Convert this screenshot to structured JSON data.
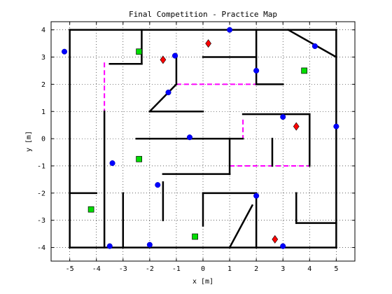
{
  "chart_data": {
    "type": "scatter",
    "title": "Final Competition - Practice Map",
    "xlabel": "x [m]",
    "ylabel": "y [m]",
    "xlim": [
      -5.7,
      5.7
    ],
    "ylim": [
      -4.5,
      4.3
    ],
    "xticks": [
      -5,
      -4,
      -3,
      -2,
      -1,
      0,
      1,
      2,
      3,
      4,
      5
    ],
    "yticks": [
      -4,
      -3,
      -2,
      -1,
      0,
      1,
      2,
      3,
      4
    ],
    "grid": true,
    "colors": {
      "wall": "#000000",
      "dashed_wall": "#ff00ff",
      "blue_marker": "#0000ff",
      "green_marker": "#00dd00",
      "red_marker": "#ff0000"
    },
    "walls": [
      [
        [
          -5,
          4
        ],
        [
          5,
          4
        ]
      ],
      [
        [
          -5,
          4
        ],
        [
          -5,
          -4
        ]
      ],
      [
        [
          -5,
          -4
        ],
        [
          5,
          -4
        ]
      ],
      [
        [
          5,
          4
        ],
        [
          5,
          -4
        ]
      ],
      [
        [
          -2.3,
          4
        ],
        [
          -2.3,
          2.75
        ]
      ],
      [
        [
          -3.5,
          2.75
        ],
        [
          -2.3,
          2.75
        ]
      ],
      [
        [
          -1,
          3.1
        ],
        [
          -1,
          2
        ]
      ],
      [
        [
          0,
          3
        ],
        [
          2,
          3
        ]
      ],
      [
        [
          2,
          4
        ],
        [
          2,
          2
        ]
      ],
      [
        [
          2,
          2
        ],
        [
          3,
          2
        ]
      ],
      [
        [
          3.2,
          4
        ],
        [
          5,
          3
        ]
      ],
      [
        [
          -1,
          2
        ],
        [
          -2,
          1
        ]
      ],
      [
        [
          -2,
          1
        ],
        [
          0,
          1
        ]
      ],
      [
        [
          -2.5,
          0
        ],
        [
          1.5,
          0
        ]
      ],
      [
        [
          1,
          0
        ],
        [
          1,
          -1.3
        ]
      ],
      [
        [
          1,
          -1.3
        ],
        [
          -1.5,
          -1.3
        ]
      ],
      [
        [
          -1.5,
          -1.6
        ],
        [
          -1.5,
          -3
        ]
      ],
      [
        [
          1.5,
          0.9
        ],
        [
          4,
          0.9
        ]
      ],
      [
        [
          4,
          0.9
        ],
        [
          4,
          -1
        ]
      ],
      [
        [
          2.6,
          0
        ],
        [
          2.6,
          -1
        ]
      ],
      [
        [
          -3.7,
          1
        ],
        [
          -3.7,
          -4
        ]
      ],
      [
        [
          -5,
          -2
        ],
        [
          -4,
          -2
        ]
      ],
      [
        [
          -3,
          -2
        ],
        [
          -3,
          -4
        ]
      ],
      [
        [
          0,
          -2
        ],
        [
          2,
          -2
        ]
      ],
      [
        [
          0,
          -2
        ],
        [
          0,
          -3.2
        ]
      ],
      [
        [
          2,
          -2
        ],
        [
          2,
          -4
        ]
      ],
      [
        [
          1,
          -4
        ],
        [
          1.85,
          -2.45
        ]
      ],
      [
        [
          3.5,
          -2
        ],
        [
          3.5,
          -3.1
        ]
      ],
      [
        [
          3.5,
          -3.1
        ],
        [
          5,
          -3.1
        ]
      ]
    ],
    "dashed_walls": [
      [
        [
          -3.7,
          2.8
        ],
        [
          -3.7,
          1
        ]
      ],
      [
        [
          -1,
          2
        ],
        [
          2,
          2
        ]
      ],
      [
        [
          1.5,
          0.7
        ],
        [
          1.5,
          0
        ]
      ],
      [
        [
          1,
          -1
        ],
        [
          4,
          -1
        ]
      ]
    ],
    "blue_points": [
      [
        1,
        4
      ],
      [
        -5.2,
        3.2
      ],
      [
        4.2,
        3.4
      ],
      [
        -1.05,
        3.05
      ],
      [
        2,
        2.5
      ],
      [
        -1.3,
        1.7
      ],
      [
        3,
        0.8
      ],
      [
        5,
        0.45
      ],
      [
        -0.5,
        0.05
      ],
      [
        -3.4,
        -0.9
      ],
      [
        -1.7,
        -1.7
      ],
      [
        2,
        -2.1
      ],
      [
        -3.5,
        -3.95
      ],
      [
        -2,
        -3.9
      ],
      [
        3,
        -3.95
      ]
    ],
    "green_points": [
      [
        -2.4,
        3.2
      ],
      [
        3.8,
        2.5
      ],
      [
        -2.4,
        -0.75
      ],
      [
        -4.2,
        -2.6
      ],
      [
        -0.3,
        -3.6
      ]
    ],
    "red_points": [
      [
        0.2,
        3.5
      ],
      [
        -1.5,
        2.9
      ],
      [
        3.5,
        0.45
      ],
      [
        2.7,
        -3.7
      ]
    ]
  }
}
